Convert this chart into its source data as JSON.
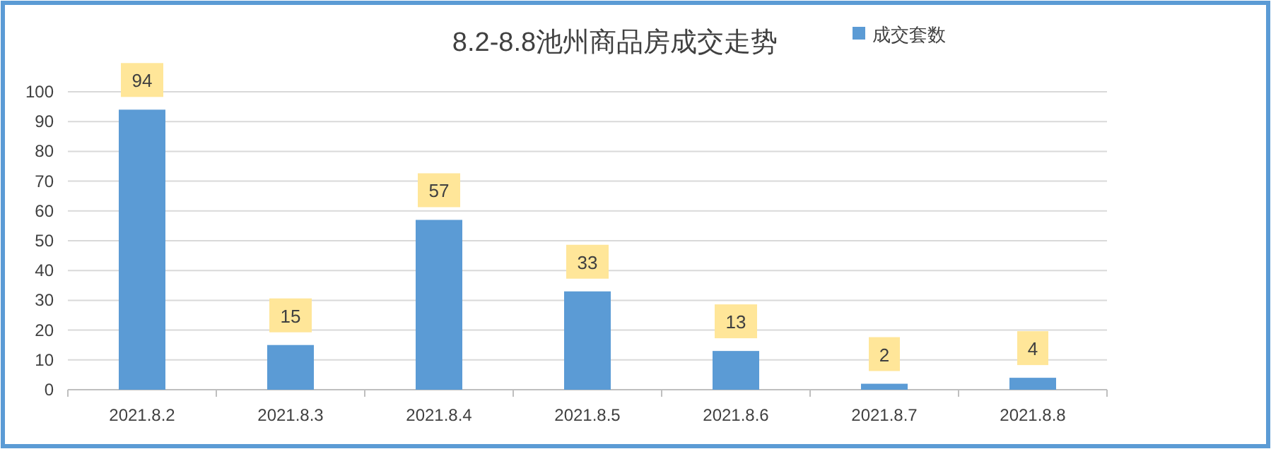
{
  "chart_data": {
    "type": "bar",
    "title": "8.2-8.8池州商品房成交走势",
    "categories": [
      "2021.8.2",
      "2021.8.3",
      "2021.8.4",
      "2021.8.5",
      "2021.8.6",
      "2021.8.7",
      "2021.8.8"
    ],
    "series": [
      {
        "name": "成交套数",
        "color": "#5b9bd5",
        "values": [
          94,
          15,
          57,
          33,
          13,
          2,
          4
        ]
      }
    ],
    "ylim": [
      0,
      100
    ],
    "yticks": [
      0,
      10,
      20,
      30,
      40,
      50,
      60,
      70,
      80,
      90,
      100
    ],
    "grid": "y",
    "legend": "top right",
    "data_labels": true
  }
}
